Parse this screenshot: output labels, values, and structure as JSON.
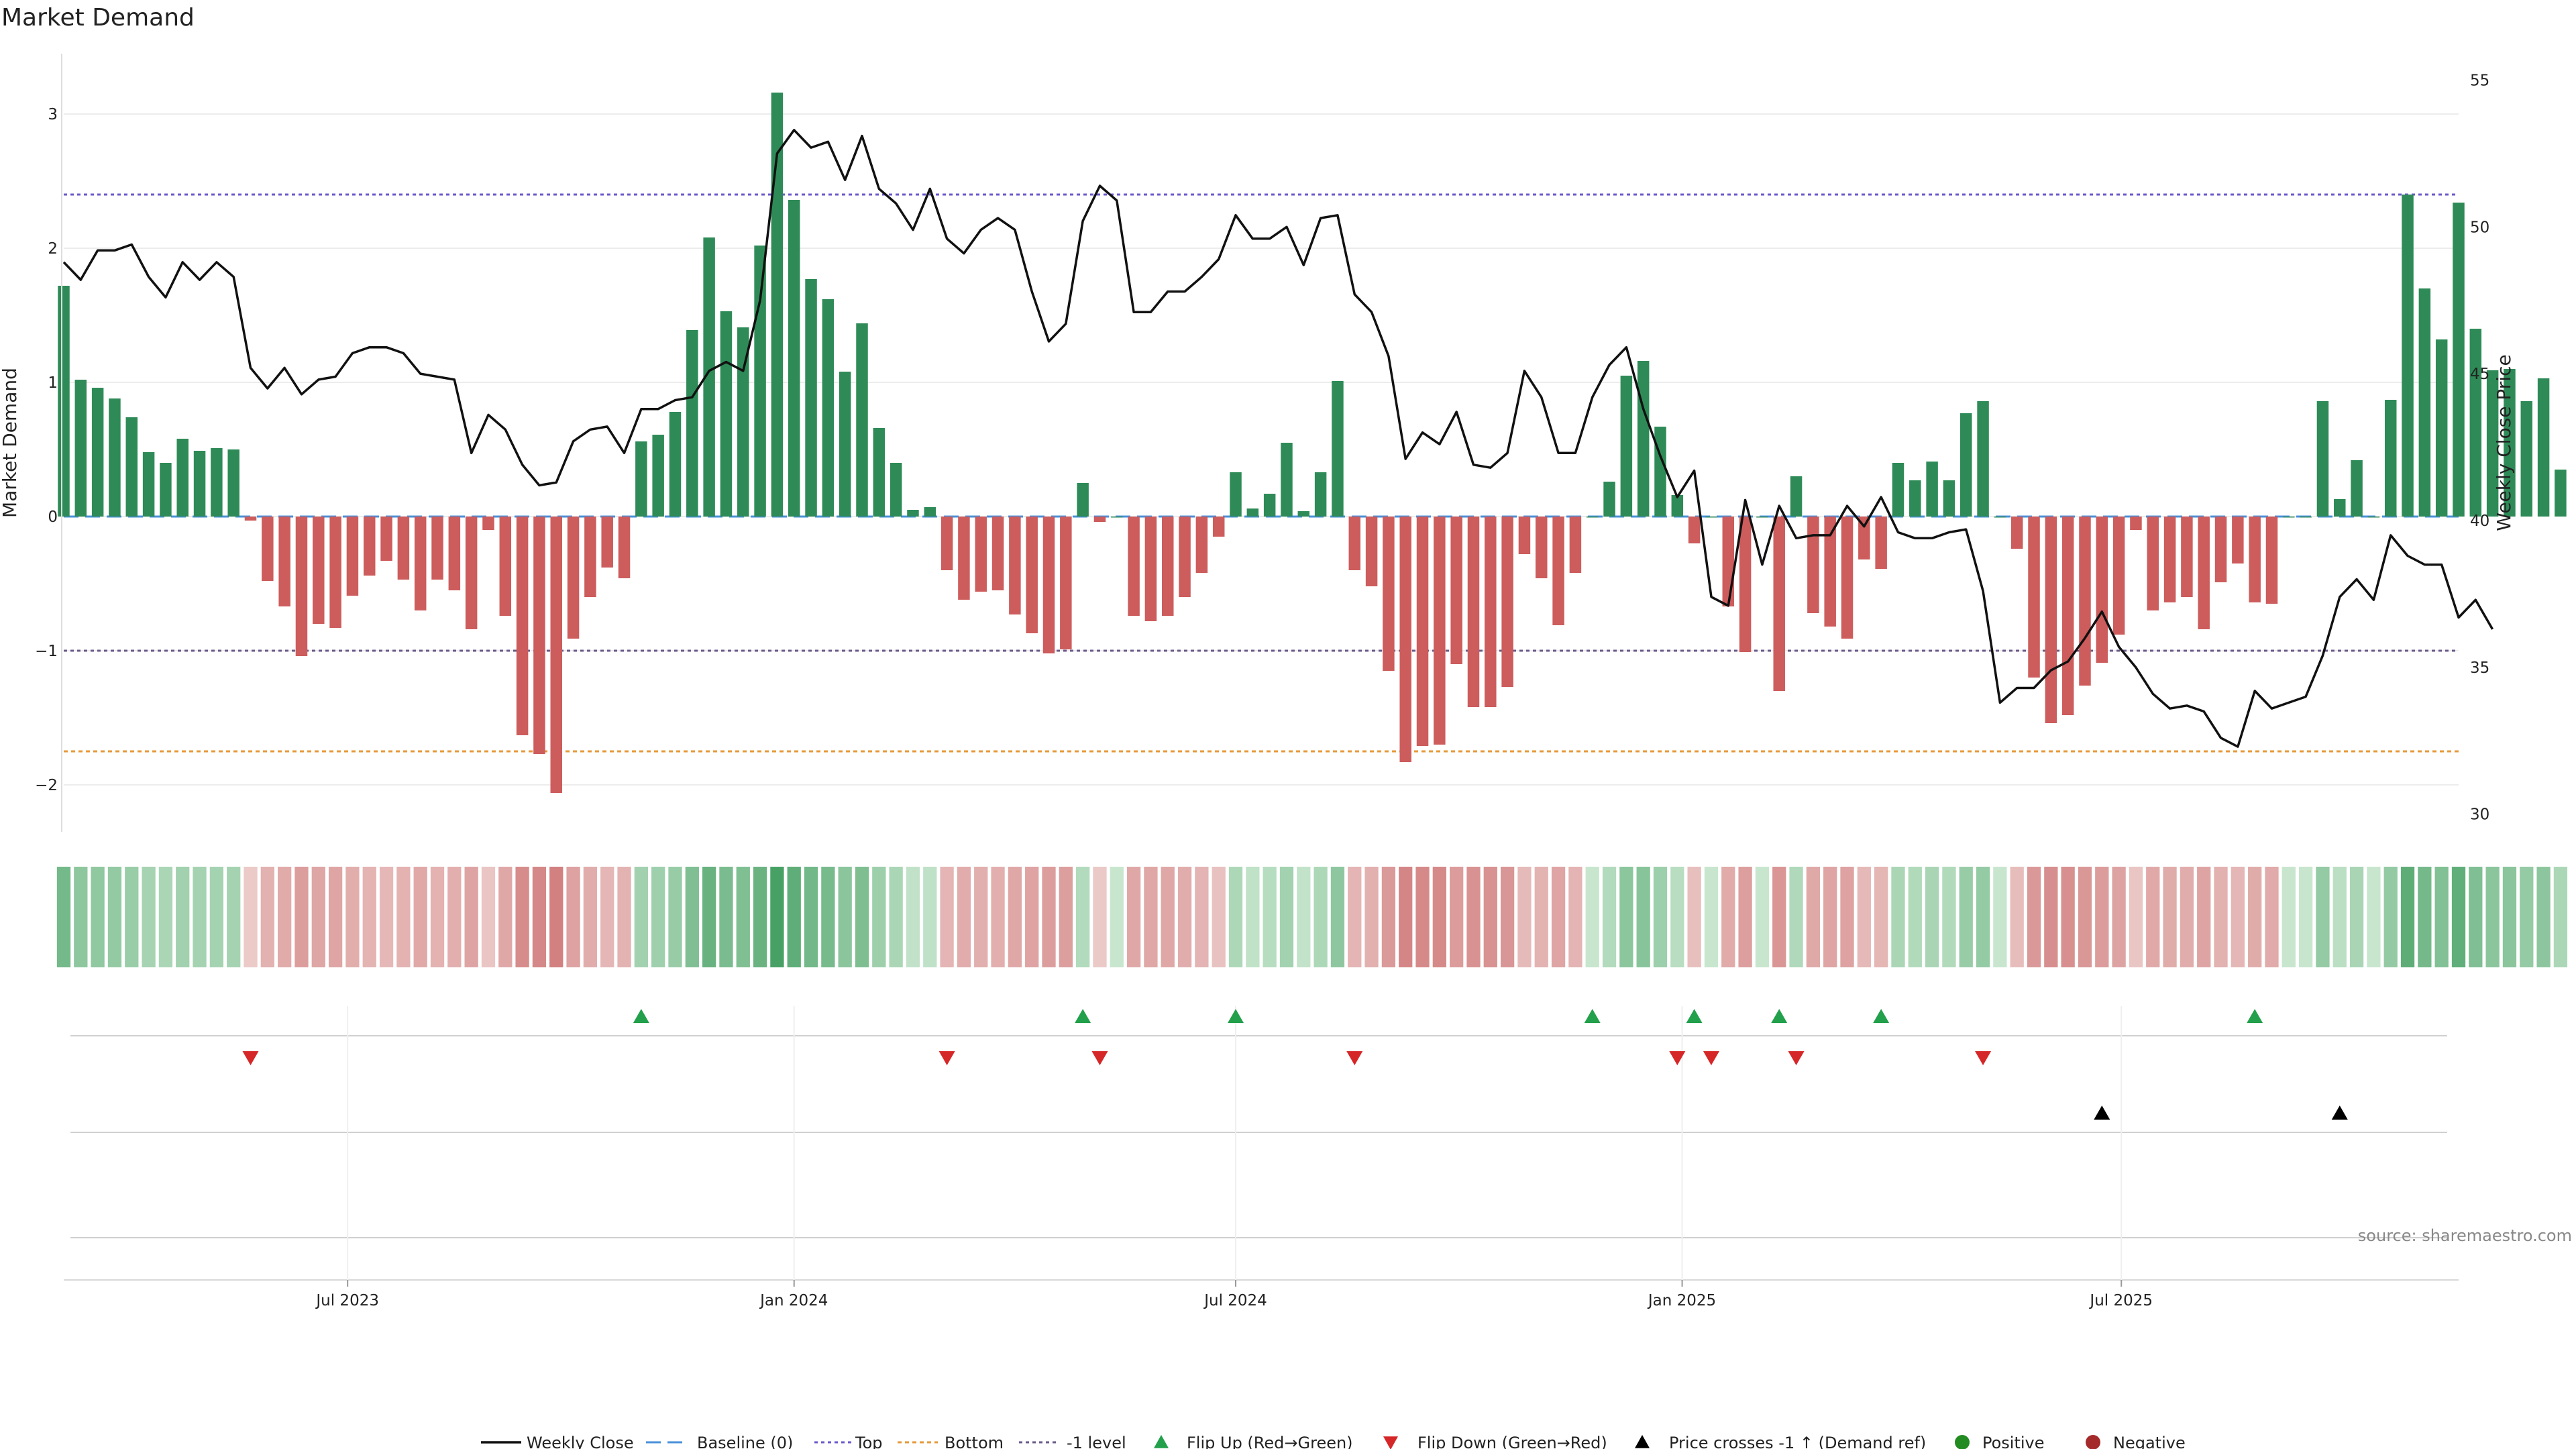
{
  "chart_data": {
    "type": "bar",
    "title": "Market Demand",
    "ylabel": "Market Demand",
    "y2label": "Weekly Close Price",
    "ylim": [
      -2.35,
      3.45
    ],
    "y2lim": [
      29.4,
      55.9
    ],
    "yticks": [
      "3",
      "2",
      "1",
      "0",
      "−1",
      "−2"
    ],
    "yticks_values": [
      3,
      2,
      1,
      0,
      -1,
      -2
    ],
    "y2ticks": [
      "55",
      "50",
      "45",
      "40",
      "35",
      "30"
    ],
    "y2ticks_values": [
      55,
      50,
      45,
      40,
      35,
      30
    ],
    "x_start": "2023-03-06",
    "x_step_days": 7,
    "x_end": "2025-11-17",
    "xticks": [
      {
        "date": "2023-07-01",
        "label": "Jul 2023"
      },
      {
        "date": "2024-01-01",
        "label": "Jan 2024"
      },
      {
        "date": "2024-07-01",
        "label": "Jul 2024"
      },
      {
        "date": "2025-01-01",
        "label": "Jan 2025"
      },
      {
        "date": "2025-07-01",
        "label": "Jul 2025"
      }
    ],
    "levels": {
      "baseline": 0,
      "top": 2.4,
      "bottom": -1.75,
      "minus_one": -1
    },
    "series": [
      {
        "name": "Market Demand",
        "values": [
          1.72,
          1.02,
          0.96,
          0.88,
          0.74,
          0.48,
          0.4,
          0.58,
          0.49,
          0.51,
          0.5,
          -0.03,
          -0.48,
          -0.67,
          -1.04,
          -0.8,
          -0.83,
          -0.59,
          -0.44,
          -0.33,
          -0.47,
          -0.7,
          -0.47,
          -0.55,
          -0.84,
          -0.1,
          -0.74,
          -1.63,
          -1.77,
          -2.06,
          -0.91,
          -0.6,
          -0.38,
          -0.46,
          0.56,
          0.61,
          0.78,
          1.39,
          2.08,
          1.53,
          1.41,
          2.02,
          3.16,
          2.36,
          1.77,
          1.62,
          1.08,
          1.44,
          0.66,
          0.4,
          0.05,
          0.07,
          -0.4,
          -0.62,
          -0.56,
          -0.55,
          -0.73,
          -0.87,
          -1.02,
          -0.99,
          0.25,
          -0.04,
          0,
          -0.74,
          -0.78,
          -0.74,
          -0.6,
          -0.42,
          -0.15,
          0.33,
          0.06,
          0.17,
          0.55,
          0.04,
          0.33,
          1.01,
          -0.4,
          -0.52,
          -1.15,
          -1.83,
          -1.71,
          -1.7,
          -1.1,
          -1.42,
          -1.42,
          -1.27,
          -0.28,
          -0.46,
          -0.81,
          -0.42,
          0,
          0.26,
          1.05,
          1.16,
          0.67,
          0.16,
          -0.2,
          0,
          -0.67,
          -1.01,
          0,
          -1.3,
          0.3,
          -0.72,
          -0.82,
          -0.91,
          -0.32,
          -0.39,
          0.4,
          0.27,
          0.41,
          0.27,
          0.77,
          0.86,
          0,
          -0.24,
          -1.2,
          -1.54,
          -1.48,
          -1.26,
          -1.09,
          -0.88,
          -0.1,
          -0.7,
          -0.64,
          -0.6,
          -0.84,
          -0.49,
          -0.35,
          -0.64,
          -0.65,
          0,
          0,
          0.86,
          0.13,
          0.42,
          0,
          0.87,
          2.4,
          1.7,
          1.32,
          2.34,
          1.4,
          1.09,
          1.1,
          0.86,
          1.03,
          0.35
        ]
      },
      {
        "name": "Weekly Close",
        "values": [
          48.8,
          48.2,
          49.2,
          49.2,
          49.4,
          48.3,
          47.6,
          48.8,
          48.2,
          48.8,
          48.3,
          45.2,
          44.5,
          45.2,
          44.3,
          44.8,
          44.9,
          45.7,
          45.9,
          45.9,
          45.7,
          45.0,
          44.9,
          44.8,
          42.3,
          43.6,
          43.1,
          41.9,
          41.2,
          41.3,
          42.7,
          43.1,
          43.2,
          42.3,
          43.8,
          43.8,
          44.1,
          44.2,
          45.1,
          45.4,
          45.1,
          47.5,
          52.5,
          53.3,
          52.7,
          52.9,
          51.6,
          53.1,
          51.3,
          50.8,
          49.9,
          51.3,
          49.6,
          49.1,
          49.9,
          50.3,
          49.9,
          47.8,
          46.1,
          46.7,
          50.2,
          51.4,
          50.9,
          47.1,
          47.1,
          47.8,
          47.8,
          48.3,
          48.9,
          50.4,
          49.6,
          49.6,
          50.0,
          48.7,
          50.3,
          50.4,
          47.7,
          47.1,
          45.6,
          42.1,
          43.0,
          42.6,
          43.7,
          41.9,
          41.8,
          42.3,
          45.1,
          44.2,
          42.3,
          42.3,
          44.2,
          45.3,
          45.9,
          43.8,
          42.2,
          40.8,
          41.7,
          37.4,
          37.1,
          40.7,
          38.5,
          40.5,
          39.4,
          39.5,
          39.5,
          40.5,
          39.8,
          40.8,
          39.6,
          39.4,
          39.4,
          39.6,
          39.7,
          37.6,
          33.8,
          34.3,
          34.3,
          34.9,
          35.2,
          36.0,
          36.9,
          35.7,
          35.0,
          34.1,
          33.6,
          33.7,
          33.5,
          32.6,
          32.3,
          34.2,
          33.6,
          33.8,
          34.0,
          35.4,
          37.4,
          38.0,
          37.3,
          39.5,
          38.8,
          38.5,
          38.5,
          36.7,
          37.3,
          36.3
        ]
      }
    ],
    "flip_up_week_index": [
      34,
      60,
      69,
      90,
      96,
      101,
      107,
      129
    ],
    "flip_down_week_index": [
      11,
      52,
      61,
      76,
      95,
      97,
      102,
      113
    ],
    "price_cross_week_index": [
      120,
      134
    ],
    "annotation_source": "source: sharemaestro.com",
    "legend": {
      "position": "bottom-center",
      "entries": [
        "Weekly Close",
        "Baseline (0)",
        "Top",
        "Bottom",
        "-1 level",
        "Flip Up (Red→Green)",
        "Flip Down (Green→Red)",
        "Price crosses -1 ↑ (Demand ref)",
        "Positive",
        "Negative"
      ]
    },
    "colors": {
      "positive": "#2e8b57",
      "negative": "#cd5c5c",
      "price": "#111111",
      "baseline": "#4a90d9",
      "top": "#6a5acd",
      "bottom": "#e69a3a",
      "minus_one": "#6a5a8a",
      "flip_up": "#22a04b",
      "flip_down": "#d62728",
      "cross": "#000000",
      "legend_positive": "#228b22",
      "legend_negative": "#a52a2a"
    }
  }
}
